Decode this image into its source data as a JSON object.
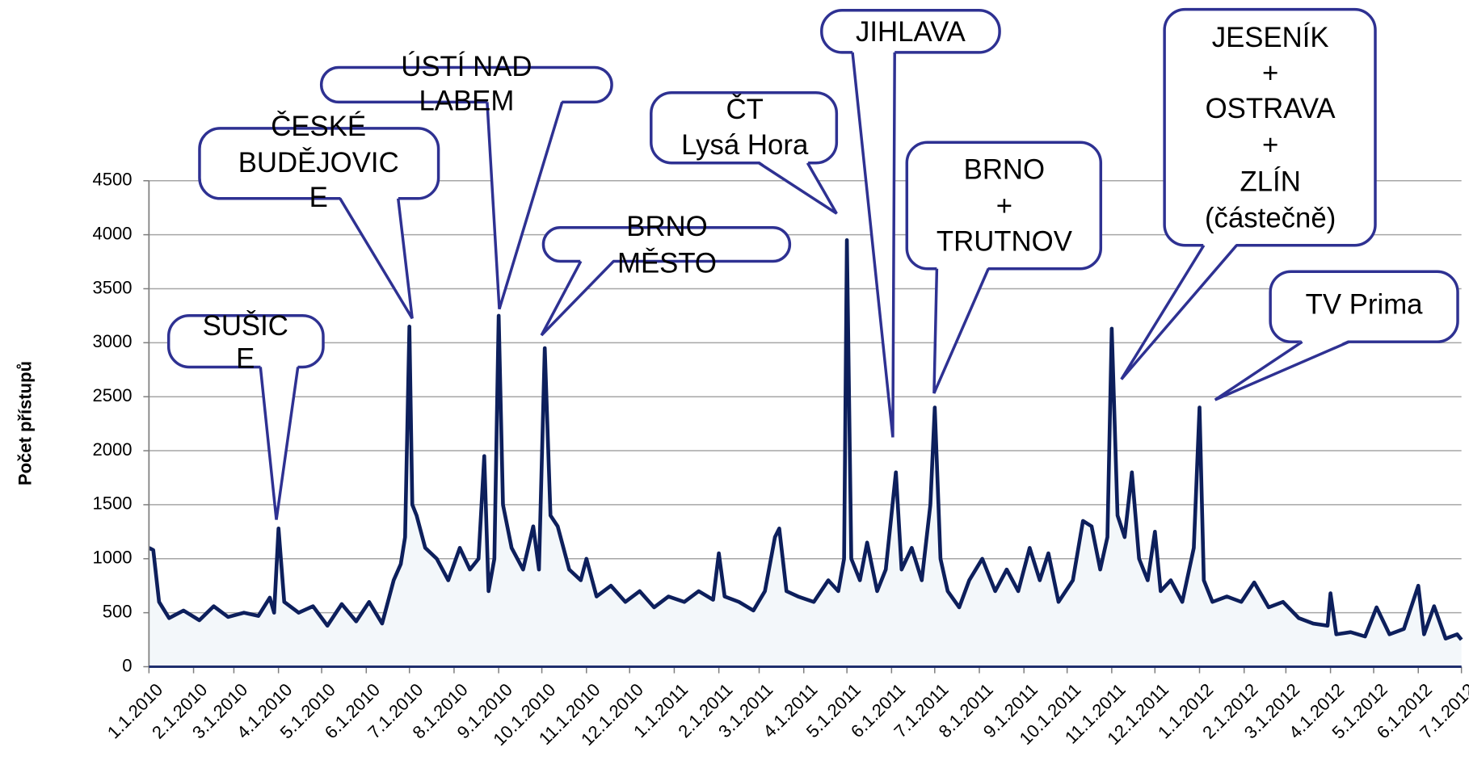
{
  "chart_data": {
    "type": "area",
    "y_label": "Počet přístupů",
    "color": "#0d1f5c",
    "fill_color": "#f3f7fa",
    "grid": true,
    "ylim": [
      0,
      4500
    ],
    "yticks": [
      0,
      500,
      1000,
      1500,
      2000,
      2500,
      3000,
      3500,
      4000,
      4500
    ],
    "xlim": [
      "2010-01-01",
      "2012-07-01"
    ],
    "xticks": [
      {
        "value": "2010-01-01",
        "label": "1.1.2010"
      },
      {
        "value": "2010-02-01",
        "label": "2.1.2010"
      },
      {
        "value": "2010-03-01",
        "label": "3.1.2010"
      },
      {
        "value": "2010-04-01",
        "label": "4.1.2010"
      },
      {
        "value": "2010-05-01",
        "label": "5.1.2010"
      },
      {
        "value": "2010-06-01",
        "label": "6.1.2010"
      },
      {
        "value": "2010-07-01",
        "label": "7.1.2010"
      },
      {
        "value": "2010-08-01",
        "label": "8.1.2010"
      },
      {
        "value": "2010-09-01",
        "label": "9.1.2010"
      },
      {
        "value": "2010-10-01",
        "label": "10.1.2010"
      },
      {
        "value": "2010-11-01",
        "label": "11.1.2010"
      },
      {
        "value": "2010-12-01",
        "label": "12.1.2010"
      },
      {
        "value": "2011-01-01",
        "label": "1.1.2011"
      },
      {
        "value": "2011-02-01",
        "label": "2.1.2011"
      },
      {
        "value": "2011-03-01",
        "label": "3.1.2011"
      },
      {
        "value": "2011-04-01",
        "label": "4.1.2011"
      },
      {
        "value": "2011-05-01",
        "label": "5.1.2011"
      },
      {
        "value": "2011-06-01",
        "label": "6.1.2011"
      },
      {
        "value": "2011-07-01",
        "label": "7.1.2011"
      },
      {
        "value": "2011-08-01",
        "label": "8.1.2011"
      },
      {
        "value": "2011-09-01",
        "label": "9.1.2011"
      },
      {
        "value": "2011-10-01",
        "label": "10.1.2011"
      },
      {
        "value": "2011-11-01",
        "label": "11.1.2011"
      },
      {
        "value": "2011-12-01",
        "label": "12.1.2011"
      },
      {
        "value": "2012-01-01",
        "label": "1.1.2012"
      },
      {
        "value": "2012-02-01",
        "label": "2.1.2012"
      },
      {
        "value": "2012-03-01",
        "label": "3.1.2012"
      },
      {
        "value": "2012-04-01",
        "label": "4.1.2012"
      },
      {
        "value": "2012-05-01",
        "label": "5.1.2012"
      },
      {
        "value": "2012-06-01",
        "label": "6.1.2012"
      },
      {
        "value": "2012-07-01",
        "label": "7.1.2012"
      }
    ],
    "x": [
      "2010-01-01",
      "2010-01-04",
      "2010-01-08",
      "2010-01-15",
      "2010-01-25",
      "2010-02-05",
      "2010-02-15",
      "2010-02-25",
      "2010-03-08",
      "2010-03-18",
      "2010-03-26",
      "2010-03-29",
      "2010-04-01",
      "2010-04-05",
      "2010-04-15",
      "2010-04-25",
      "2010-05-05",
      "2010-05-15",
      "2010-05-25",
      "2010-06-03",
      "2010-06-12",
      "2010-06-20",
      "2010-06-25",
      "2010-06-28",
      "2010-07-01",
      "2010-07-03",
      "2010-07-06",
      "2010-07-12",
      "2010-07-20",
      "2010-07-28",
      "2010-08-05",
      "2010-08-12",
      "2010-08-18",
      "2010-08-22",
      "2010-08-25",
      "2010-08-29",
      "2010-09-01",
      "2010-09-04",
      "2010-09-10",
      "2010-09-18",
      "2010-09-25",
      "2010-09-29",
      "2010-10-03",
      "2010-10-07",
      "2010-10-12",
      "2010-10-20",
      "2010-10-28",
      "2010-11-01",
      "2010-11-08",
      "2010-11-18",
      "2010-11-28",
      "2010-12-08",
      "2010-12-18",
      "2010-12-28",
      "2011-01-08",
      "2011-01-18",
      "2011-01-28",
      "2011-02-01",
      "2011-02-05",
      "2011-02-15",
      "2011-02-25",
      "2011-03-05",
      "2011-03-12",
      "2011-03-15",
      "2011-03-20",
      "2011-03-28",
      "2011-04-08",
      "2011-04-18",
      "2011-04-25",
      "2011-04-29",
      "2011-05-01",
      "2011-05-04",
      "2011-05-10",
      "2011-05-15",
      "2011-05-22",
      "2011-05-28",
      "2011-06-04",
      "2011-06-08",
      "2011-06-15",
      "2011-06-22",
      "2011-06-28",
      "2011-07-01",
      "2011-07-05",
      "2011-07-10",
      "2011-07-18",
      "2011-07-25",
      "2011-08-03",
      "2011-08-12",
      "2011-08-20",
      "2011-08-28",
      "2011-09-05",
      "2011-09-12",
      "2011-09-18",
      "2011-09-25",
      "2011-10-05",
      "2011-10-12",
      "2011-10-18",
      "2011-10-24",
      "2011-10-29",
      "2011-11-01",
      "2011-11-05",
      "2011-11-10",
      "2011-11-15",
      "2011-11-20",
      "2011-11-26",
      "2011-12-01",
      "2011-12-05",
      "2011-12-12",
      "2011-12-20",
      "2011-12-28",
      "2012-01-01",
      "2012-01-04",
      "2012-01-10",
      "2012-01-20",
      "2012-01-30",
      "2012-02-08",
      "2012-02-18",
      "2012-02-28",
      "2012-03-10",
      "2012-03-20",
      "2012-03-30",
      "2012-04-01",
      "2012-04-05",
      "2012-04-15",
      "2012-04-25",
      "2012-05-03",
      "2012-05-12",
      "2012-05-22",
      "2012-06-01",
      "2012-06-05",
      "2012-06-12",
      "2012-06-20",
      "2012-06-28",
      "2012-07-01"
    ],
    "values": [
      1100,
      1080,
      600,
      450,
      520,
      430,
      560,
      460,
      500,
      470,
      640,
      500,
      1280,
      600,
      500,
      560,
      380,
      580,
      420,
      600,
      400,
      800,
      950,
      1200,
      3150,
      1500,
      1400,
      1100,
      1000,
      800,
      1100,
      900,
      1000,
      1950,
      700,
      1000,
      3250,
      1500,
      1100,
      900,
      1300,
      900,
      2950,
      1400,
      1300,
      900,
      800,
      1000,
      650,
      750,
      600,
      700,
      550,
      650,
      600,
      700,
      620,
      1050,
      650,
      600,
      520,
      700,
      1200,
      1280,
      700,
      650,
      600,
      800,
      700,
      1000,
      3950,
      1000,
      800,
      1150,
      700,
      900,
      1800,
      900,
      1100,
      800,
      1500,
      2400,
      1000,
      700,
      550,
      800,
      1000,
      700,
      900,
      700,
      1100,
      800,
      1050,
      600,
      800,
      1350,
      1300,
      900,
      1200,
      3130,
      1400,
      1200,
      1800,
      1000,
      800,
      1250,
      700,
      800,
      600,
      1100,
      2400,
      800,
      600,
      650,
      600,
      780,
      550,
      600,
      450,
      400,
      380,
      680,
      300,
      320,
      280,
      550,
      300,
      350,
      750,
      300,
      560,
      260,
      300,
      250
    ],
    "annotations": [
      {
        "text": [
          "SUŠIC",
          "E"
        ]
      },
      {
        "text": [
          "ČESKÉ",
          "BUDĚJOVIC",
          "E"
        ]
      },
      {
        "text": [
          "ÚSTÍ NAD",
          "LABEM"
        ]
      },
      {
        "text": [
          "BRNO",
          "MĚSTO"
        ]
      },
      {
        "text": [
          "ČT",
          "Lysá Hora"
        ]
      },
      {
        "text": [
          "JIHLAVA"
        ]
      },
      {
        "text": [
          "BRNO",
          "+",
          "TRUTNOV"
        ]
      },
      {
        "text": [
          "JESENÍK",
          "+",
          "OSTRAVA",
          "+",
          "ZLÍN",
          "(částečně)"
        ]
      },
      {
        "text": [
          "TV Prima"
        ]
      }
    ]
  }
}
